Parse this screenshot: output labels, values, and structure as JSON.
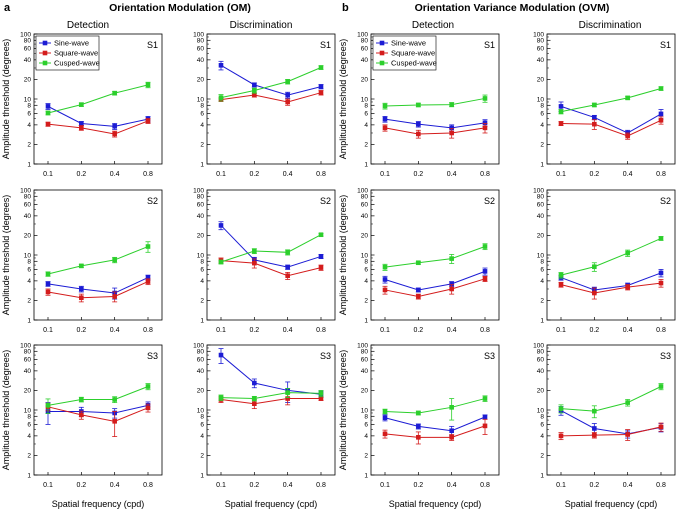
{
  "figure": {
    "panel_a": {
      "letter": "a",
      "title": "Orientation Modulation (OM)"
    },
    "panel_b": {
      "letter": "b",
      "title": "Orientation Variance Modulation (OVM)"
    },
    "column_titles": [
      "Detection",
      "Discrimination",
      "Detection",
      "Discrimination"
    ],
    "ylabel": "Amplitude threshold (degrees)",
    "xlabel": "Spatial frequency (cpd)",
    "legend": [
      "Sine-wave",
      "Square-wave",
      "Cusped-wave"
    ],
    "colors": {
      "sine": "#1c1cd4",
      "square": "#d41c1c",
      "cusped": "#2ccf2c"
    }
  },
  "chart_data": [
    {
      "type": "line",
      "panel": "a",
      "task": "Detection",
      "subject": "S1",
      "x": [
        0.1,
        0.2,
        0.4,
        0.8
      ],
      "ylim": [
        1,
        100
      ],
      "series": [
        {
          "name": "Sine-wave",
          "values": [
            7.7,
            4.2,
            3.8,
            4.9
          ],
          "err": [
            0.8,
            0.3,
            0.4,
            0.5
          ]
        },
        {
          "name": "Square-wave",
          "values": [
            4.1,
            3.6,
            2.9,
            4.6
          ],
          "err": [
            0.3,
            0.3,
            0.3,
            0.4
          ]
        },
        {
          "name": "Cusped-wave",
          "values": [
            6.1,
            8.2,
            12.3,
            16.5
          ],
          "err": [
            0.4,
            0.5,
            0.8,
            1.6
          ]
        }
      ]
    },
    {
      "type": "line",
      "panel": "a",
      "task": "Discrimination",
      "subject": "S1",
      "x": [
        0.1,
        0.2,
        0.4,
        0.8
      ],
      "ylim": [
        1,
        100
      ],
      "series": [
        {
          "name": "Sine-wave",
          "values": [
            33,
            16.5,
            11.5,
            15.5
          ],
          "err": [
            5,
            1.2,
            1.2,
            1.2
          ]
        },
        {
          "name": "Square-wave",
          "values": [
            9.8,
            11.5,
            9.0,
            12.5
          ],
          "err": [
            0.6,
            0.8,
            1.0,
            1.0
          ]
        },
        {
          "name": "Cusped-wave",
          "values": [
            10.5,
            13.5,
            18.5,
            30.5
          ],
          "err": [
            1.2,
            1.2,
            1.5,
            2.0
          ]
        }
      ]
    },
    {
      "type": "line",
      "panel": "b",
      "task": "Detection",
      "subject": "S1",
      "x": [
        0.1,
        0.2,
        0.4,
        0.8
      ],
      "ylim": [
        1,
        100
      ],
      "series": [
        {
          "name": "Sine-wave",
          "values": [
            4.9,
            4.1,
            3.6,
            4.3
          ],
          "err": [
            0.5,
            0.4,
            0.4,
            0.5
          ]
        },
        {
          "name": "Square-wave",
          "values": [
            3.6,
            2.9,
            3.0,
            3.6
          ],
          "err": [
            0.4,
            0.4,
            0.5,
            0.6
          ]
        },
        {
          "name": "Cusped-wave",
          "values": [
            7.8,
            8.1,
            8.2,
            10.2
          ],
          "err": [
            0.8,
            0.5,
            0.6,
            1.3
          ]
        }
      ]
    },
    {
      "type": "line",
      "panel": "b",
      "task": "Discrimination",
      "subject": "S1",
      "x": [
        0.1,
        0.2,
        0.4,
        0.8
      ],
      "ylim": [
        1,
        100
      ],
      "series": [
        {
          "name": "Sine-wave",
          "values": [
            7.7,
            5.2,
            3.0,
            5.9
          ],
          "err": [
            1.3,
            0.4,
            0.3,
            1.0
          ]
        },
        {
          "name": "Square-wave",
          "values": [
            4.2,
            4.1,
            2.7,
            4.7
          ],
          "err": [
            0.3,
            0.7,
            0.3,
            0.6
          ]
        },
        {
          "name": "Cusped-wave",
          "values": [
            6.4,
            8.1,
            10.4,
            14.5
          ],
          "err": [
            0.5,
            0.5,
            0.6,
            0.9
          ]
        }
      ]
    },
    {
      "type": "line",
      "panel": "a",
      "task": "Detection",
      "subject": "S2",
      "x": [
        0.1,
        0.2,
        0.4,
        0.8
      ],
      "ylim": [
        1,
        100
      ],
      "series": [
        {
          "name": "Sine-wave",
          "values": [
            3.6,
            3.0,
            2.6,
            4.5
          ],
          "err": [
            0.3,
            0.3,
            0.5,
            0.4
          ]
        },
        {
          "name": "Square-wave",
          "values": [
            2.7,
            2.2,
            2.3,
            3.9
          ],
          "err": [
            0.3,
            0.3,
            0.4,
            0.4
          ]
        },
        {
          "name": "Cusped-wave",
          "values": [
            5.1,
            6.8,
            8.4,
            13.5
          ],
          "err": [
            0.4,
            0.4,
            0.8,
            2.5
          ]
        }
      ]
    },
    {
      "type": "line",
      "panel": "a",
      "task": "Discrimination",
      "subject": "S2",
      "x": [
        0.1,
        0.2,
        0.4,
        0.8
      ],
      "ylim": [
        1,
        100
      ],
      "series": [
        {
          "name": "Sine-wave",
          "values": [
            28.5,
            8.4,
            6.5,
            9.5
          ],
          "err": [
            4,
            0.8,
            0.5,
            0.7
          ]
        },
        {
          "name": "Square-wave",
          "values": [
            8.2,
            7.5,
            4.8,
            6.4
          ],
          "err": [
            0.8,
            1.2,
            0.6,
            0.6
          ]
        },
        {
          "name": "Cusped-wave",
          "values": [
            7.8,
            11.5,
            11.0,
            20.5
          ],
          "err": [
            0.5,
            1.0,
            1.0,
            1.0
          ]
        }
      ]
    },
    {
      "type": "line",
      "panel": "b",
      "task": "Detection",
      "subject": "S2",
      "x": [
        0.1,
        0.2,
        0.4,
        0.8
      ],
      "ylim": [
        1,
        100
      ],
      "series": [
        {
          "name": "Sine-wave",
          "values": [
            4.2,
            2.9,
            3.6,
            5.6
          ],
          "err": [
            0.5,
            0.2,
            0.3,
            0.7
          ]
        },
        {
          "name": "Square-wave",
          "values": [
            2.9,
            2.3,
            3.0,
            4.3
          ],
          "err": [
            0.4,
            0.2,
            0.5,
            0.4
          ]
        },
        {
          "name": "Cusped-wave",
          "values": [
            6.5,
            7.6,
            8.8,
            13.5
          ],
          "err": [
            0.7,
            0.4,
            1.4,
            1.4
          ]
        }
      ]
    },
    {
      "type": "line",
      "panel": "b",
      "task": "Discrimination",
      "subject": "S2",
      "x": [
        0.1,
        0.2,
        0.4,
        0.8
      ],
      "ylim": [
        1,
        100
      ],
      "series": [
        {
          "name": "Sine-wave",
          "values": [
            4.5,
            2.9,
            3.4,
            5.3
          ],
          "err": [
            0.4,
            0.3,
            0.3,
            0.7
          ]
        },
        {
          "name": "Square-wave",
          "values": [
            3.5,
            2.6,
            3.2,
            3.7
          ],
          "err": [
            0.3,
            0.5,
            0.3,
            0.5
          ]
        },
        {
          "name": "Cusped-wave",
          "values": [
            4.9,
            6.6,
            10.7,
            18.0
          ],
          "err": [
            0.5,
            1.0,
            1.2,
            1.2
          ]
        }
      ]
    },
    {
      "type": "line",
      "panel": "a",
      "task": "Detection",
      "subject": "S3",
      "x": [
        0.1,
        0.2,
        0.4,
        0.8
      ],
      "ylim": [
        1,
        100
      ],
      "series": [
        {
          "name": "Sine-wave",
          "values": [
            9.5,
            9.5,
            9.0,
            11.8
          ],
          "err": [
            3.5,
            1.5,
            1.5,
            1.5
          ]
        },
        {
          "name": "Square-wave",
          "values": [
            11.2,
            8.4,
            6.7,
            10.8
          ],
          "err": [
            1.5,
            1.2,
            2.8,
            1.5
          ]
        },
        {
          "name": "Cusped-wave",
          "values": [
            11.8,
            14.5,
            14.5,
            23
          ],
          "err": [
            3.0,
            1.2,
            1.5,
            2.5
          ]
        }
      ]
    },
    {
      "type": "line",
      "panel": "a",
      "task": "Discrimination",
      "subject": "S3",
      "x": [
        0.1,
        0.2,
        0.4,
        0.8
      ],
      "ylim": [
        1,
        100
      ],
      "series": [
        {
          "name": "Sine-wave",
          "values": [
            70,
            26,
            20,
            17.5
          ],
          "err": [
            18,
            4,
            7,
            2
          ]
        },
        {
          "name": "Square-wave",
          "values": [
            14.5,
            12.5,
            15,
            15
          ],
          "err": [
            1.5,
            2,
            3,
            1
          ]
        },
        {
          "name": "Cusped-wave",
          "values": [
            15.5,
            15,
            18.5,
            18
          ],
          "err": [
            1.5,
            1.2,
            3,
            2
          ]
        }
      ]
    },
    {
      "type": "line",
      "panel": "b",
      "task": "Detection",
      "subject": "S3",
      "x": [
        0.1,
        0.2,
        0.4,
        0.8
      ],
      "ylim": [
        1,
        100
      ],
      "series": [
        {
          "name": "Sine-wave",
          "values": [
            7.6,
            5.6,
            4.8,
            7.8
          ],
          "err": [
            0.8,
            0.5,
            0.8,
            0.6
          ]
        },
        {
          "name": "Square-wave",
          "values": [
            4.3,
            3.8,
            3.8,
            5.7
          ],
          "err": [
            0.6,
            0.8,
            0.4,
            1.5
          ]
        },
        {
          "name": "Cusped-wave",
          "values": [
            9.5,
            9.0,
            11.0,
            15.0
          ],
          "err": [
            0.8,
            0.6,
            4.0,
            1.5
          ]
        }
      ]
    },
    {
      "type": "line",
      "panel": "b",
      "task": "Discrimination",
      "subject": "S3",
      "x": [
        0.1,
        0.2,
        0.4,
        0.8
      ],
      "ylim": [
        1,
        100
      ],
      "series": [
        {
          "name": "Sine-wave",
          "values": [
            9.8,
            5.2,
            4.3,
            5.4
          ],
          "err": [
            1.5,
            1.0,
            0.6,
            0.8
          ]
        },
        {
          "name": "Square-wave",
          "values": [
            4.0,
            4.1,
            4.2,
            5.5
          ],
          "err": [
            0.5,
            0.4,
            0.8,
            0.8
          ]
        },
        {
          "name": "Cusped-wave",
          "values": [
            10.5,
            9.6,
            13.0,
            23.0
          ],
          "err": [
            1.5,
            2.0,
            1.5,
            2.5
          ]
        }
      ]
    }
  ]
}
